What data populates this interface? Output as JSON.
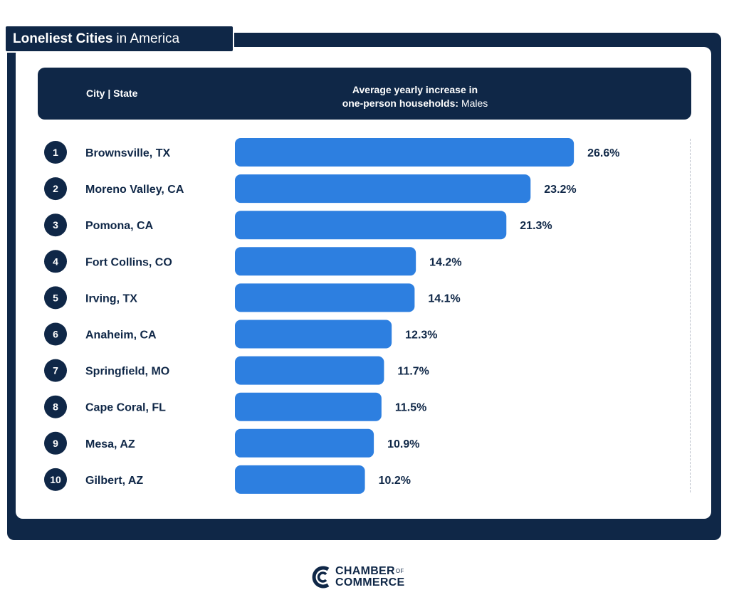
{
  "title": {
    "bold": "Loneliest Cities",
    "rest": "in America"
  },
  "header": {
    "city_label": "City | State",
    "metric_line1": "Average yearly increase in",
    "metric_line2_bold": "one-person households:",
    "metric_line2_rest": "Males"
  },
  "colors": {
    "navy": "#0f2747",
    "bar": "#2d7fe0",
    "text": "#0f2747"
  },
  "chart_data": {
    "type": "bar",
    "orientation": "horizontal",
    "ranks": [
      "1",
      "2",
      "3",
      "4",
      "5",
      "6",
      "7",
      "8",
      "9",
      "10"
    ],
    "categories": [
      "Brownsville, TX",
      "Moreno Valley, CA",
      "Pomona, CA",
      "Fort Collins, CO",
      "Irving, TX",
      "Anaheim, CA",
      "Springfield, MO",
      "Cape Coral, FL",
      "Mesa, AZ",
      "Gilbert, AZ"
    ],
    "values": [
      26.6,
      23.2,
      21.3,
      14.2,
      14.1,
      12.3,
      11.7,
      11.5,
      10.9,
      10.2
    ],
    "value_labels": [
      "26.6%",
      "23.2%",
      "21.3%",
      "14.2%",
      "14.1%",
      "12.3%",
      "11.7%",
      "11.5%",
      "10.9%",
      "10.2%"
    ],
    "xlabel": "",
    "ylabel": ""
  },
  "logo": {
    "line1": "CHAMBER",
    "of": "OF",
    "line2": "COMMERCE"
  }
}
